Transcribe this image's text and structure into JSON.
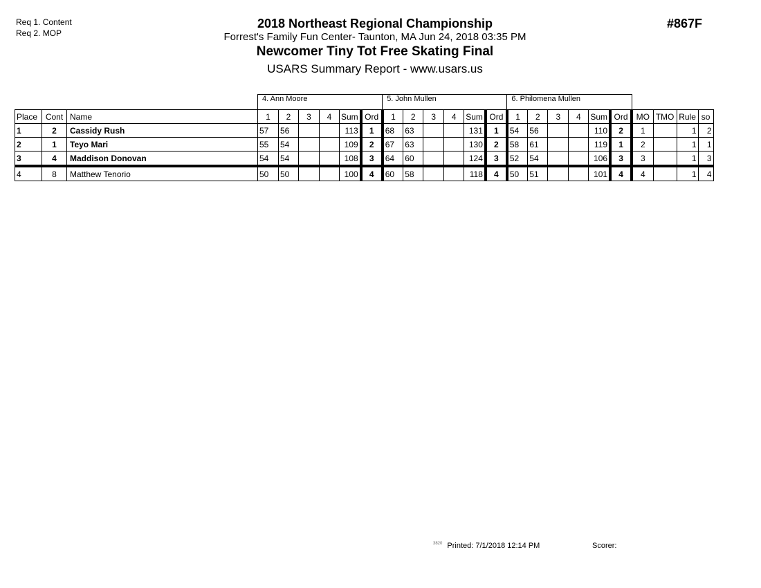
{
  "requirements": [
    "Req 1. Content",
    "Req 2. MOP"
  ],
  "title": "2018 Northeast Regional Championship",
  "subtitle": "Forrest's Family Fun Center- Taunton, MA  Jun 24, 2018  03:35 PM",
  "event": "Newcomer Tiny Tot Free Skating Final",
  "report": "USARS Summary Report - www.usars.us",
  "event_number": "#867F",
  "judges": [
    "4.  Ann Moore",
    "5.  John Mullen",
    "6.  Philomena Mullen"
  ],
  "columns": {
    "place": "Place",
    "cont": "Cont",
    "name": "Name",
    "judge_cols": [
      "1",
      "2",
      "3",
      "4",
      "Sum",
      "Ord"
    ],
    "mo": "MO",
    "tmo": "TMO",
    "rule": "Rule",
    "so": "so"
  },
  "rows": [
    {
      "place": "1",
      "cont": "2",
      "name": "Cassidy Rush",
      "bold": true,
      "judges": [
        [
          "57",
          "56",
          "",
          "",
          "113",
          "1"
        ],
        [
          "68",
          "63",
          "",
          "",
          "131",
          "1"
        ],
        [
          "54",
          "56",
          "",
          "",
          "110",
          "2"
        ]
      ],
      "mo": "1",
      "tmo": "",
      "rule": "1",
      "so": "2"
    },
    {
      "place": "2",
      "cont": "1",
      "name": "Teyo Mari",
      "bold": true,
      "judges": [
        [
          "55",
          "54",
          "",
          "",
          "109",
          "2"
        ],
        [
          "67",
          "63",
          "",
          "",
          "130",
          "2"
        ],
        [
          "58",
          "61",
          "",
          "",
          "119",
          "1"
        ]
      ],
      "mo": "2",
      "tmo": "",
      "rule": "1",
      "so": "1"
    },
    {
      "place": "3",
      "cont": "4",
      "name": "Maddison Donovan",
      "bold": true,
      "judges": [
        [
          "54",
          "54",
          "",
          "",
          "108",
          "3"
        ],
        [
          "64",
          "60",
          "",
          "",
          "124",
          "3"
        ],
        [
          "52",
          "54",
          "",
          "",
          "106",
          "3"
        ]
      ],
      "mo": "3",
      "tmo": "",
      "rule": "1",
      "so": "3"
    },
    {
      "place": "4",
      "cont": "8",
      "name": "Matthew Tenorio",
      "bold": false,
      "judges": [
        [
          "50",
          "50",
          "",
          "",
          "100",
          "4"
        ],
        [
          "60",
          "58",
          "",
          "",
          "118",
          "4"
        ],
        [
          "50",
          "51",
          "",
          "",
          "101",
          "4"
        ]
      ],
      "mo": "4",
      "tmo": "",
      "rule": "1",
      "so": "4"
    }
  ],
  "footer": {
    "code": "3820",
    "printed": "Printed:  7/1/2018  12:14 PM",
    "scorer": "Scorer:"
  }
}
